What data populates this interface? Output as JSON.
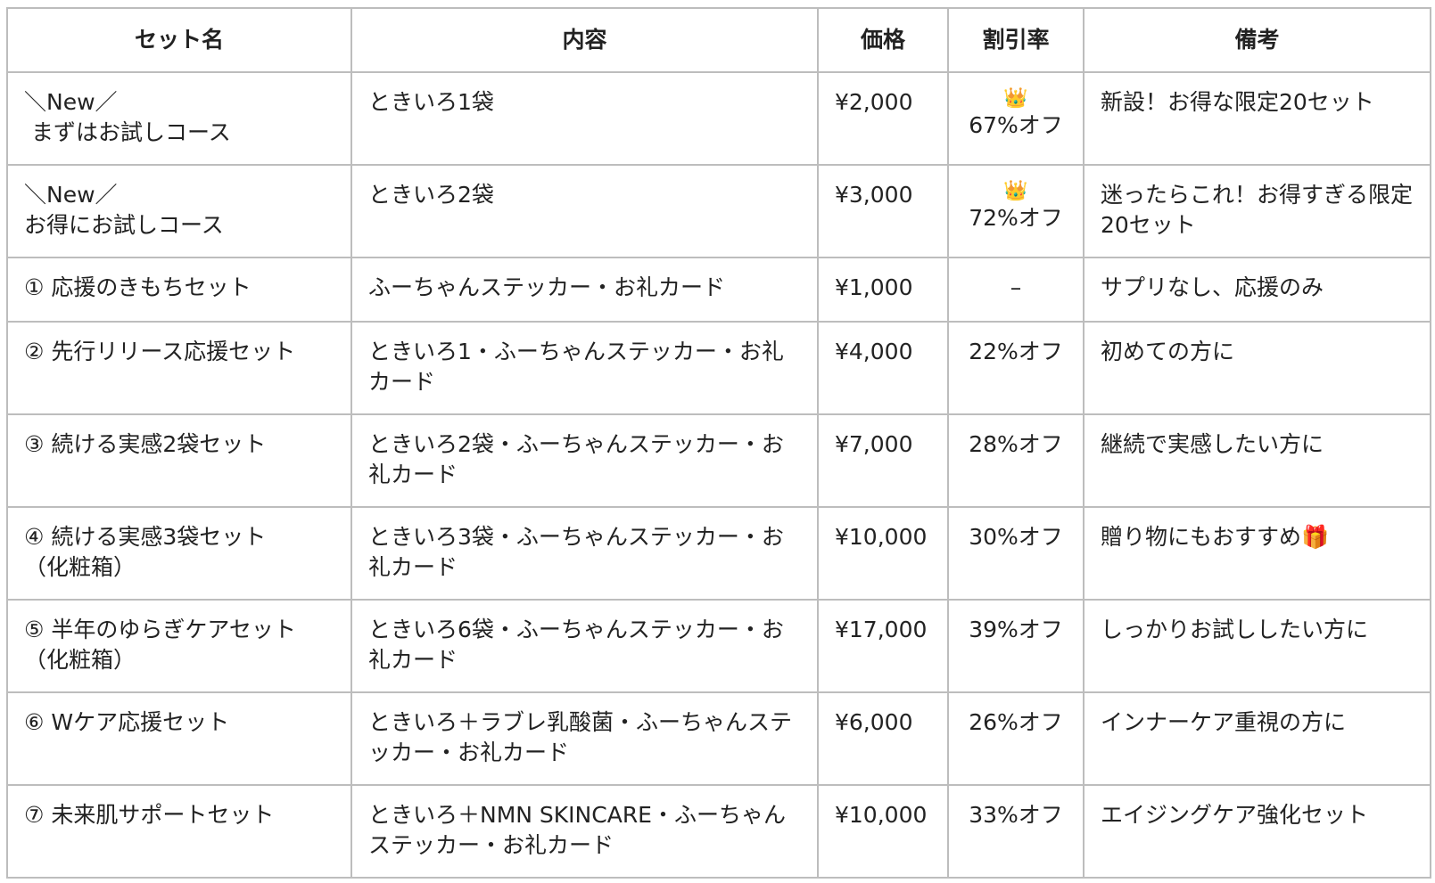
{
  "headers": [
    "セット名",
    "内容",
    "価格",
    "割引率",
    "備考"
  ],
  "rows": [
    {
      "name": [
        "＼New／",
        " まずはお試しコース"
      ],
      "content": "ときいろ1袋",
      "price": "¥2,000",
      "badge": "👑",
      "discount": "67%オフ",
      "note": "新設！お得な限定20セット"
    },
    {
      "name": [
        "＼New／",
        "お得にお試しコース"
      ],
      "content": "ときいろ2袋",
      "price": "¥3,000",
      "badge": "👑",
      "discount": "72%オフ",
      "note": "迷ったらこれ！お得すぎる限定20セット"
    },
    {
      "name": [
        "① 応援のきもちセット"
      ],
      "content": "ふーちゃんステッカー・お礼カード",
      "price": "¥1,000",
      "badge": "",
      "discount": "–",
      "note": "サプリなし、応援のみ"
    },
    {
      "name": [
        "② 先行リリース応援セット"
      ],
      "content": "ときいろ1・ふーちゃんステッカー・お礼カード",
      "price": "¥4,000",
      "badge": "",
      "discount": "22%オフ",
      "note": "初めての方に"
    },
    {
      "name": [
        "③ 続ける実感2袋セット"
      ],
      "content": "ときいろ2袋・ふーちゃんステッカー・お礼カード",
      "price": "¥7,000",
      "badge": "",
      "discount": "28%オフ",
      "note": "継続で実感したい方に"
    },
    {
      "name": [
        "④ 続ける実感3袋セット",
        "（化粧箱）"
      ],
      "content": "ときいろ3袋・ふーちゃんステッカー・お礼カード",
      "price": "¥10,000",
      "badge": "",
      "discount": "30%オフ",
      "note": "贈り物にもおすすめ🎁"
    },
    {
      "name": [
        "⑤ 半年のゆらぎケアセット（化粧箱）"
      ],
      "content": "ときいろ6袋・ふーちゃんステッカー・お礼カード",
      "price": "¥17,000",
      "badge": "",
      "discount": "39%オフ",
      "note": "しっかりお試ししたい方に"
    },
    {
      "name": [
        "⑥ Wケア応援セット"
      ],
      "content": "ときいろ＋ラブレ乳酸菌・ふーちゃんステッカー・お礼カード",
      "price": "¥6,000",
      "badge": "",
      "discount": "26%オフ",
      "note": "インナーケア重視の方に"
    },
    {
      "name": [
        "⑦ 未来肌サポートセット"
      ],
      "content": "ときいろ＋NMN SKINCARE・ふーちゃんステッカー・お礼カード",
      "price": "¥10,000",
      "badge": "",
      "discount": "33%オフ",
      "note": "エイジングケア強化セット"
    }
  ]
}
